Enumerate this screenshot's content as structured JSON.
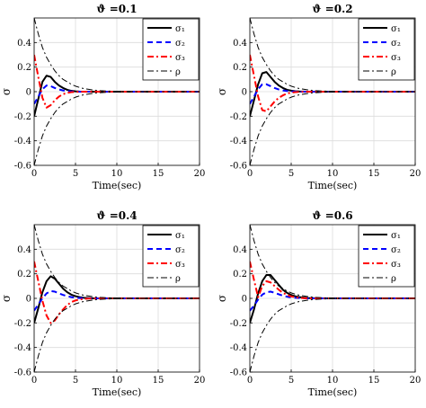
{
  "figure": {
    "y_label": "σ",
    "x_label": "Time(sec)"
  },
  "styles": {
    "sigma_1": {
      "color": "#000000",
      "dash": "solid",
      "width": 2
    },
    "sigma_2": {
      "color": "#0000ff",
      "dash": "dashed",
      "width": 2
    },
    "sigma_3": {
      "color": "#ff0000",
      "dash": "dashdot",
      "width": 2
    },
    "rho": {
      "color": "#000000",
      "dash": "dashdot",
      "width": 1
    }
  },
  "legend": {
    "position": "top-right",
    "entries": [
      "σ₁",
      "σ₂",
      "σ₃",
      "ρ"
    ]
  },
  "chart_data": [
    {
      "type": "line",
      "title": "ϑ =0.1",
      "xlabel": "Time(sec)",
      "ylabel": "σ",
      "xlim": [
        0,
        20
      ],
      "ylim": [
        -0.6,
        0.6
      ],
      "xticks": [
        0,
        5,
        10,
        15,
        20
      ],
      "yticks": [
        -0.6,
        -0.4,
        -0.2,
        0,
        0.2,
        0.4
      ],
      "grid": true,
      "legend_position": "top-right",
      "x": [
        0,
        0.5,
        1,
        1.5,
        2,
        2.5,
        3,
        3.5,
        4,
        4.5,
        5,
        5.5,
        6,
        6.5,
        7,
        7.5,
        8,
        9,
        10,
        12,
        15,
        20
      ],
      "series": [
        {
          "name": "σ₁",
          "style": "sigma_1",
          "values": [
            -0.2,
            -0.06,
            0.08,
            0.13,
            0.12,
            0.08,
            0.05,
            0.03,
            0.015,
            0.007,
            0.003,
            0.001,
            0.0,
            0,
            0,
            0,
            0,
            0,
            0,
            0,
            0,
            0
          ]
        },
        {
          "name": "σ₂",
          "style": "sigma_2",
          "values": [
            -0.1,
            -0.04,
            0.02,
            0.05,
            0.045,
            0.03,
            0.018,
            0.01,
            0.005,
            0.002,
            0.001,
            0,
            0,
            0,
            0,
            0,
            0,
            0,
            0,
            0,
            0,
            0
          ]
        },
        {
          "name": "σ₃",
          "style": "sigma_3",
          "values": [
            0.3,
            0.12,
            -0.05,
            -0.13,
            -0.11,
            -0.07,
            -0.04,
            -0.02,
            -0.01,
            -0.004,
            -0.002,
            0,
            0,
            0,
            0,
            0,
            0,
            0,
            0,
            0,
            0,
            0
          ]
        },
        {
          "name": "ρ",
          "style": "rho",
          "values": [
            0.6,
            0.47,
            0.36,
            0.28,
            0.22,
            0.17,
            0.13,
            0.1,
            0.08,
            0.06,
            0.045,
            0.034,
            0.025,
            0.02,
            0.015,
            0.011,
            0.008,
            0.005,
            0.003,
            0.001,
            0,
            0
          ]
        },
        {
          "name": "",
          "style": "rho",
          "values": [
            -0.6,
            -0.47,
            -0.36,
            -0.28,
            -0.22,
            -0.17,
            -0.13,
            -0.1,
            -0.08,
            -0.06,
            -0.045,
            -0.034,
            -0.025,
            -0.02,
            -0.015,
            -0.011,
            -0.008,
            -0.005,
            -0.003,
            -0.001,
            0,
            0
          ]
        }
      ]
    },
    {
      "type": "line",
      "title": "ϑ =0.2",
      "xlabel": "Time(sec)",
      "ylabel": "σ",
      "xlim": [
        0,
        20
      ],
      "ylim": [
        -0.6,
        0.6
      ],
      "xticks": [
        0,
        5,
        10,
        15,
        20
      ],
      "yticks": [
        -0.6,
        -0.4,
        -0.2,
        0,
        0.2,
        0.4
      ],
      "grid": true,
      "legend_position": "top-right",
      "x": [
        0,
        0.5,
        1,
        1.5,
        2,
        2.5,
        3,
        3.5,
        4,
        4.5,
        5,
        5.5,
        6,
        6.5,
        7,
        7.5,
        8,
        9,
        10,
        12,
        15,
        20
      ],
      "series": [
        {
          "name": "σ₁",
          "style": "sigma_1",
          "values": [
            -0.2,
            -0.07,
            0.06,
            0.15,
            0.16,
            0.12,
            0.08,
            0.05,
            0.03,
            0.015,
            0.008,
            0.004,
            0.002,
            0.001,
            0,
            0,
            0,
            0,
            0,
            0,
            0,
            0
          ]
        },
        {
          "name": "σ₂",
          "style": "sigma_2",
          "values": [
            -0.1,
            -0.04,
            0.02,
            0.06,
            0.06,
            0.045,
            0.03,
            0.018,
            0.01,
            0.005,
            0.002,
            0.001,
            0,
            0,
            0,
            0,
            0,
            0,
            0,
            0,
            0,
            0
          ]
        },
        {
          "name": "σ₃",
          "style": "sigma_3",
          "values": [
            0.3,
            0.13,
            -0.04,
            -0.15,
            -0.16,
            -0.12,
            -0.08,
            -0.05,
            -0.03,
            -0.015,
            -0.008,
            -0.004,
            -0.002,
            0,
            0,
            0,
            0,
            0,
            0,
            0,
            0,
            0
          ]
        },
        {
          "name": "ρ",
          "style": "rho",
          "values": [
            0.6,
            0.47,
            0.36,
            0.28,
            0.22,
            0.17,
            0.13,
            0.1,
            0.08,
            0.06,
            0.045,
            0.034,
            0.025,
            0.02,
            0.015,
            0.011,
            0.008,
            0.005,
            0.003,
            0.001,
            0,
            0
          ]
        },
        {
          "name": "",
          "style": "rho",
          "values": [
            -0.6,
            -0.47,
            -0.36,
            -0.28,
            -0.22,
            -0.17,
            -0.13,
            -0.1,
            -0.08,
            -0.06,
            -0.045,
            -0.034,
            -0.025,
            -0.02,
            -0.015,
            -0.011,
            -0.008,
            -0.005,
            -0.003,
            -0.001,
            0,
            0
          ]
        }
      ]
    },
    {
      "type": "line",
      "title": "ϑ =0.4",
      "xlabel": "Time(sec)",
      "ylabel": "σ",
      "xlim": [
        0,
        20
      ],
      "ylim": [
        -0.6,
        0.6
      ],
      "xticks": [
        0,
        5,
        10,
        15,
        20
      ],
      "yticks": [
        -0.6,
        -0.4,
        -0.2,
        0,
        0.2,
        0.4
      ],
      "grid": true,
      "legend_position": "top-right",
      "x": [
        0,
        0.5,
        1,
        1.5,
        2,
        2.5,
        3,
        3.5,
        4,
        4.5,
        5,
        5.5,
        6,
        6.5,
        7,
        7.5,
        8,
        9,
        10,
        12,
        15,
        20
      ],
      "series": [
        {
          "name": "σ₁",
          "style": "sigma_1",
          "values": [
            -0.2,
            -0.08,
            0.05,
            0.14,
            0.18,
            0.16,
            0.12,
            0.08,
            0.05,
            0.03,
            0.018,
            0.01,
            0.005,
            0.003,
            0.001,
            0,
            0,
            0,
            0,
            0,
            0,
            0
          ]
        },
        {
          "name": "σ₂",
          "style": "sigma_2",
          "values": [
            -0.1,
            -0.05,
            0.0,
            0.04,
            0.06,
            0.055,
            0.04,
            0.028,
            0.018,
            0.01,
            0.005,
            0.003,
            0.001,
            0,
            0,
            0,
            0,
            0,
            0,
            0,
            0,
            0
          ]
        },
        {
          "name": "σ₃",
          "style": "sigma_3",
          "values": [
            0.3,
            0.14,
            -0.02,
            -0.14,
            -0.2,
            -0.18,
            -0.13,
            -0.09,
            -0.055,
            -0.03,
            -0.017,
            -0.009,
            -0.004,
            -0.002,
            -0.001,
            0,
            0,
            0,
            0,
            0,
            0,
            0
          ]
        },
        {
          "name": "ρ",
          "style": "rho",
          "values": [
            0.6,
            0.47,
            0.36,
            0.28,
            0.22,
            0.17,
            0.13,
            0.1,
            0.08,
            0.06,
            0.045,
            0.034,
            0.025,
            0.02,
            0.015,
            0.011,
            0.008,
            0.005,
            0.003,
            0.001,
            0,
            0
          ]
        },
        {
          "name": "",
          "style": "rho",
          "values": [
            -0.6,
            -0.47,
            -0.36,
            -0.28,
            -0.22,
            -0.17,
            -0.13,
            -0.1,
            -0.08,
            -0.06,
            -0.045,
            -0.034,
            -0.025,
            -0.02,
            -0.015,
            -0.011,
            -0.008,
            -0.005,
            -0.003,
            -0.001,
            0,
            0
          ]
        }
      ]
    },
    {
      "type": "line",
      "title": "ϑ =0.6",
      "xlabel": "Time(sec)",
      "ylabel": "σ",
      "xlim": [
        0,
        20
      ],
      "ylim": [
        -0.6,
        0.6
      ],
      "xticks": [
        0,
        5,
        10,
        15,
        20
      ],
      "yticks": [
        -0.6,
        -0.4,
        -0.2,
        0,
        0.2,
        0.4
      ],
      "grid": true,
      "legend_position": "top-right",
      "x": [
        0,
        0.5,
        1,
        1.5,
        2,
        2.5,
        3,
        3.5,
        4,
        4.5,
        5,
        5.5,
        6,
        6.5,
        7,
        7.5,
        8,
        9,
        10,
        12,
        15,
        20
      ],
      "series": [
        {
          "name": "σ₁",
          "style": "sigma_1",
          "values": [
            -0.2,
            -0.09,
            0.04,
            0.14,
            0.19,
            0.19,
            0.15,
            0.11,
            0.07,
            0.045,
            0.028,
            0.017,
            0.01,
            0.006,
            0.003,
            0.002,
            0.001,
            0,
            0,
            0,
            0,
            0
          ]
        },
        {
          "name": "σ₂",
          "style": "sigma_2",
          "values": [
            -0.1,
            -0.06,
            -0.01,
            0.03,
            0.05,
            0.055,
            0.045,
            0.033,
            0.022,
            0.014,
            0.008,
            0.005,
            0.003,
            0.001,
            0,
            0,
            0,
            0,
            0,
            0,
            0,
            0
          ]
        },
        {
          "name": "σ₃",
          "style": "sigma_3",
          "values": [
            0.3,
            0.15,
            0.01,
            0.1,
            0.14,
            0.13,
            0.1,
            0.07,
            0.045,
            0.028,
            0.016,
            0.009,
            0.005,
            0.002,
            0.001,
            0,
            0,
            0,
            0,
            0,
            0,
            0
          ]
        },
        {
          "name": "ρ",
          "style": "rho",
          "values": [
            0.6,
            0.47,
            0.36,
            0.28,
            0.22,
            0.17,
            0.13,
            0.1,
            0.08,
            0.06,
            0.045,
            0.034,
            0.025,
            0.02,
            0.015,
            0.011,
            0.008,
            0.005,
            0.003,
            0.001,
            0,
            0
          ]
        },
        {
          "name": "",
          "style": "rho",
          "values": [
            -0.6,
            -0.47,
            -0.36,
            -0.28,
            -0.22,
            -0.17,
            -0.13,
            -0.1,
            -0.08,
            -0.06,
            -0.045,
            -0.034,
            -0.025,
            -0.02,
            -0.015,
            -0.011,
            -0.008,
            -0.005,
            -0.003,
            -0.001,
            0,
            0
          ]
        }
      ]
    }
  ]
}
